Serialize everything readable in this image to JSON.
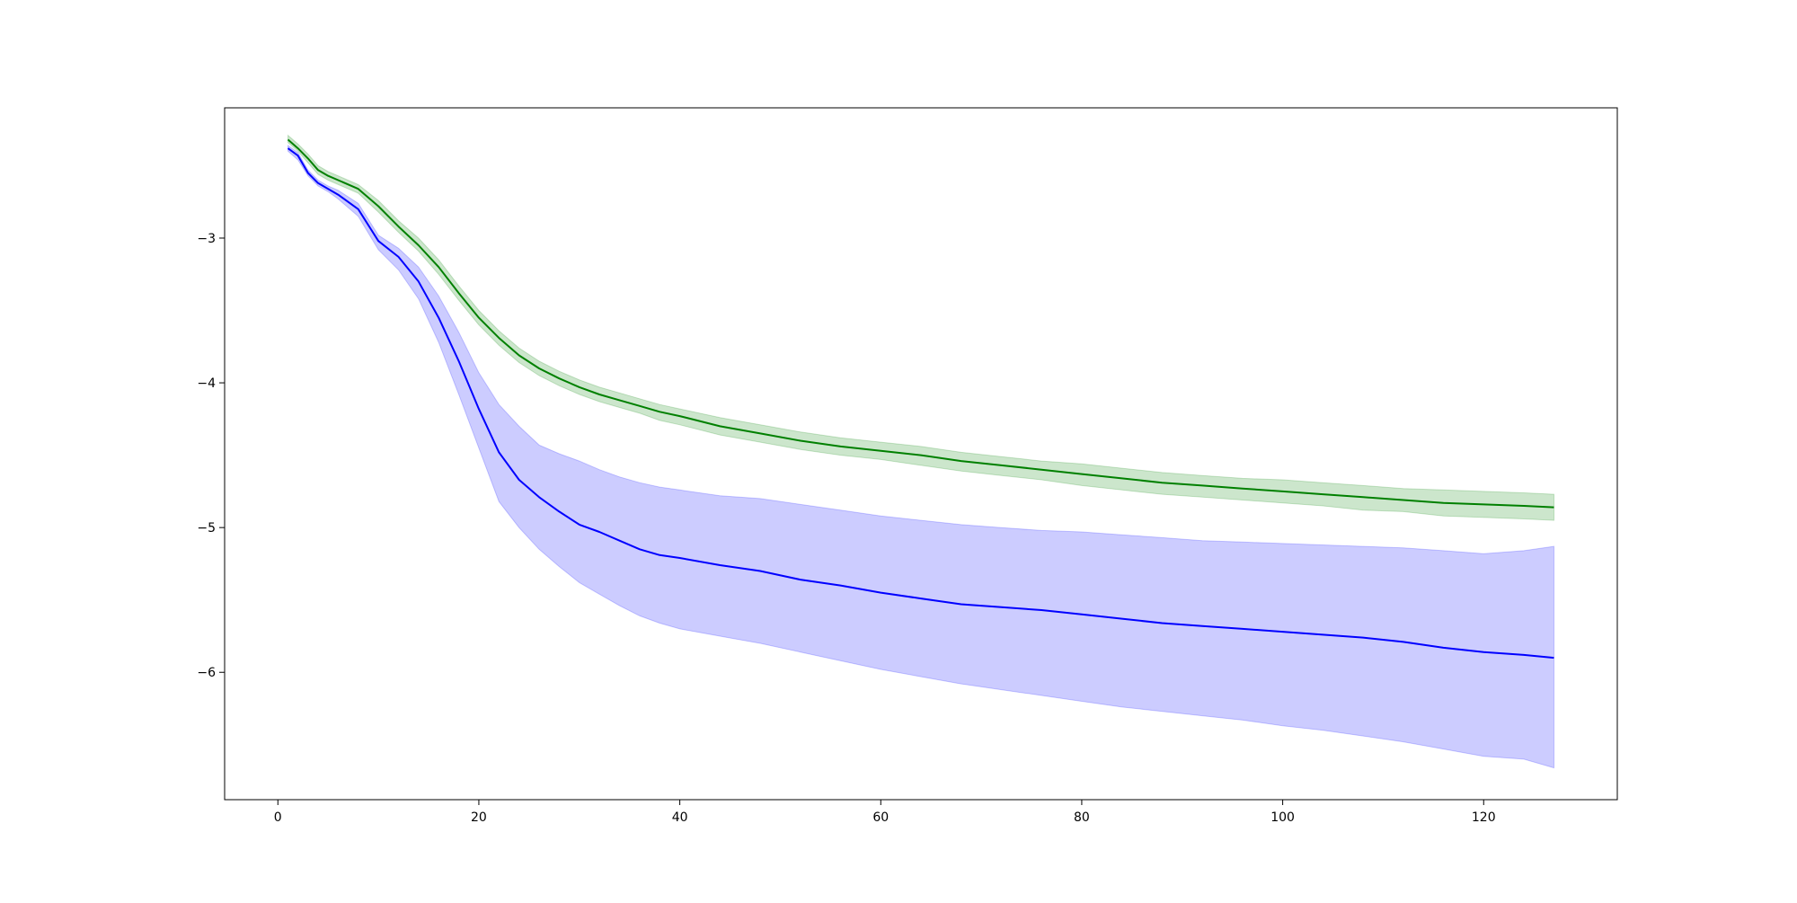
{
  "chart_data": {
    "type": "line",
    "title": "",
    "xlabel": "",
    "ylabel": "",
    "xlim": [
      -5.3,
      133.3
    ],
    "ylim": [
      -6.88,
      -2.1
    ],
    "grid": false,
    "legend": "none",
    "x_ticks": [
      0,
      20,
      40,
      60,
      80,
      100,
      120
    ],
    "y_ticks": [
      -3,
      -4,
      -5,
      -6
    ],
    "x_tick_labels": [
      "0",
      "20",
      "40",
      "60",
      "80",
      "100",
      "120"
    ],
    "y_tick_labels": [
      "−3",
      "−4",
      "−5",
      "−6"
    ],
    "series": [
      {
        "color": "#008000",
        "band_color": "#008000",
        "band_opacity": 0.2,
        "x": [
          1,
          2,
          3,
          4,
          5,
          6,
          8,
          10,
          12,
          14,
          16,
          18,
          20,
          22,
          24,
          26,
          28,
          30,
          32,
          34,
          36,
          38,
          40,
          44,
          48,
          52,
          56,
          60,
          64,
          68,
          72,
          76,
          80,
          84,
          88,
          92,
          96,
          100,
          104,
          108,
          112,
          116,
          120,
          124,
          127
        ],
        "mean": [
          -2.32,
          -2.38,
          -2.45,
          -2.53,
          -2.57,
          -2.6,
          -2.66,
          -2.78,
          -2.92,
          -3.05,
          -3.2,
          -3.38,
          -3.55,
          -3.69,
          -3.81,
          -3.9,
          -3.97,
          -4.03,
          -4.08,
          -4.12,
          -4.16,
          -4.2,
          -4.23,
          -4.3,
          -4.35,
          -4.4,
          -4.44,
          -4.47,
          -4.5,
          -4.54,
          -4.57,
          -4.6,
          -4.63,
          -4.66,
          -4.69,
          -4.71,
          -4.73,
          -4.75,
          -4.77,
          -4.79,
          -4.81,
          -4.83,
          -4.84,
          -4.85,
          -4.86
        ],
        "lower": [
          -2.34,
          -2.4,
          -2.48,
          -2.56,
          -2.6,
          -2.63,
          -2.69,
          -2.82,
          -2.96,
          -3.09,
          -3.25,
          -3.43,
          -3.6,
          -3.74,
          -3.86,
          -3.95,
          -4.02,
          -4.08,
          -4.13,
          -4.17,
          -4.21,
          -4.26,
          -4.29,
          -4.36,
          -4.41,
          -4.46,
          -4.5,
          -4.53,
          -4.57,
          -4.61,
          -4.64,
          -4.67,
          -4.71,
          -4.74,
          -4.77,
          -4.79,
          -4.81,
          -4.83,
          -4.85,
          -4.88,
          -4.89,
          -4.92,
          -4.93,
          -4.94,
          -4.95
        ],
        "upper": [
          -2.29,
          -2.35,
          -2.42,
          -2.5,
          -2.54,
          -2.57,
          -2.63,
          -2.74,
          -2.88,
          -3.0,
          -3.15,
          -3.33,
          -3.5,
          -3.64,
          -3.76,
          -3.85,
          -3.92,
          -3.98,
          -4.03,
          -4.07,
          -4.11,
          -4.15,
          -4.18,
          -4.24,
          -4.29,
          -4.34,
          -4.38,
          -4.41,
          -4.44,
          -4.48,
          -4.51,
          -4.54,
          -4.56,
          -4.59,
          -4.62,
          -4.64,
          -4.66,
          -4.67,
          -4.69,
          -4.71,
          -4.73,
          -4.74,
          -4.75,
          -4.76,
          -4.77
        ]
      },
      {
        "color": "#0000ff",
        "band_color": "#0000ff",
        "band_opacity": 0.2,
        "x": [
          1,
          2,
          3,
          4,
          5,
          6,
          8,
          10,
          12,
          14,
          16,
          18,
          20,
          22,
          24,
          26,
          28,
          30,
          32,
          34,
          36,
          38,
          40,
          44,
          48,
          52,
          56,
          60,
          64,
          68,
          72,
          76,
          80,
          84,
          88,
          92,
          96,
          100,
          104,
          108,
          112,
          116,
          120,
          124,
          127
        ],
        "mean": [
          -2.38,
          -2.43,
          -2.55,
          -2.62,
          -2.66,
          -2.7,
          -2.8,
          -3.02,
          -3.13,
          -3.3,
          -3.55,
          -3.85,
          -4.18,
          -4.48,
          -4.67,
          -4.79,
          -4.89,
          -4.98,
          -5.03,
          -5.09,
          -5.15,
          -5.19,
          -5.21,
          -5.26,
          -5.3,
          -5.36,
          -5.4,
          -5.45,
          -5.49,
          -5.53,
          -5.55,
          -5.57,
          -5.6,
          -5.63,
          -5.66,
          -5.68,
          -5.7,
          -5.72,
          -5.74,
          -5.76,
          -5.79,
          -5.83,
          -5.86,
          -5.88,
          -5.9
        ],
        "lower": [
          -2.4,
          -2.46,
          -2.57,
          -2.64,
          -2.68,
          -2.73,
          -2.85,
          -3.08,
          -3.22,
          -3.42,
          -3.72,
          -4.08,
          -4.45,
          -4.82,
          -5.0,
          -5.15,
          -5.27,
          -5.38,
          -5.46,
          -5.54,
          -5.61,
          -5.66,
          -5.7,
          -5.75,
          -5.8,
          -5.86,
          -5.92,
          -5.98,
          -6.03,
          -6.08,
          -6.12,
          -6.16,
          -6.2,
          -6.24,
          -6.27,
          -6.3,
          -6.33,
          -6.37,
          -6.4,
          -6.44,
          -6.48,
          -6.53,
          -6.58,
          -6.6,
          -6.66
        ],
        "upper": [
          -2.36,
          -2.41,
          -2.53,
          -2.6,
          -2.64,
          -2.67,
          -2.76,
          -2.98,
          -3.07,
          -3.2,
          -3.4,
          -3.65,
          -3.93,
          -4.15,
          -4.3,
          -4.43,
          -4.49,
          -4.54,
          -4.6,
          -4.65,
          -4.69,
          -4.72,
          -4.74,
          -4.78,
          -4.8,
          -4.84,
          -4.88,
          -4.92,
          -4.95,
          -4.98,
          -5.0,
          -5.02,
          -5.03,
          -5.05,
          -5.07,
          -5.09,
          -5.1,
          -5.11,
          -5.12,
          -5.13,
          -5.14,
          -5.16,
          -5.18,
          -5.16,
          -5.13
        ]
      }
    ]
  }
}
